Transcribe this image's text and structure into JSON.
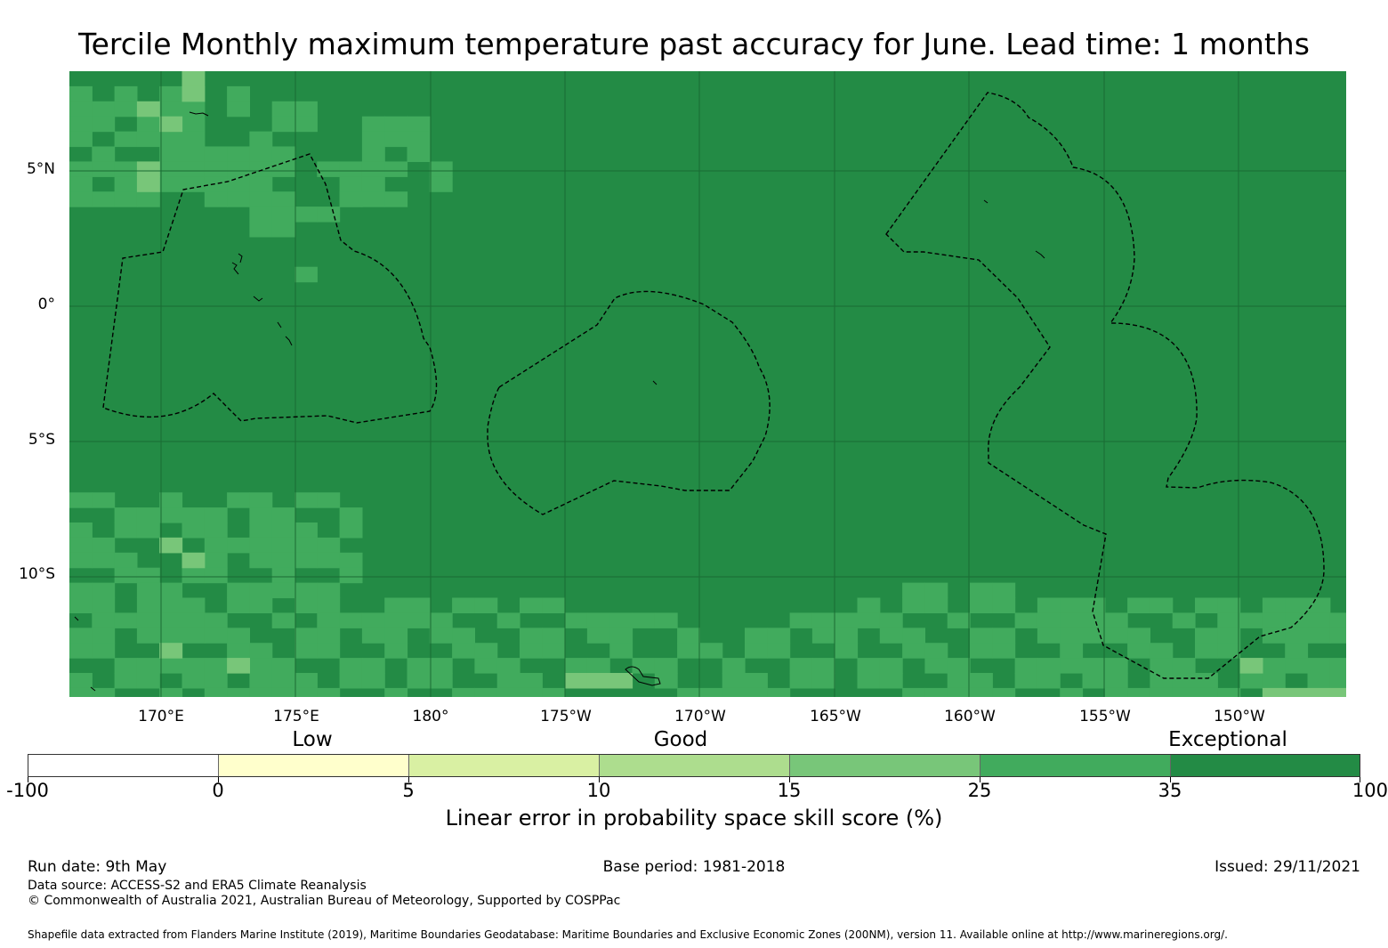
{
  "title": "Tercile Monthly maximum temperature past accuracy for June. Lead time: 1 months",
  "map": {
    "latitude_labels": [
      "5°N",
      "0°",
      "5°S",
      "10°S"
    ],
    "longitude_labels": [
      "170°E",
      "175°E",
      "180°",
      "175°W",
      "170°W",
      "165°W",
      "160°W",
      "155°W",
      "150°W"
    ],
    "base_color": "#238b45",
    "gridline_color": "#1a6b34"
  },
  "categories": [
    "Low",
    "Good",
    "Exceptional"
  ],
  "colorbar": {
    "bins": [
      {
        "from": "-100",
        "to": "0",
        "color": "#ffffff"
      },
      {
        "from": "0",
        "to": "5",
        "color": "#ffffcc"
      },
      {
        "from": "5",
        "to": "10",
        "color": "#d9f0a3"
      },
      {
        "from": "10",
        "to": "15",
        "color": "#addd8e"
      },
      {
        "from": "15",
        "to": "25",
        "color": "#78c679"
      },
      {
        "from": "25",
        "to": "35",
        "color": "#41ab5d"
      },
      {
        "from": "35",
        "to": "100",
        "color": "#238b45"
      }
    ],
    "tick_labels": [
      "-100",
      "0",
      "5",
      "10",
      "15",
      "25",
      "35",
      "100"
    ],
    "label": "Linear error in probability space skill score (%)"
  },
  "footer": {
    "run_date": "Run date: 9th May",
    "base_period": "Base period: 1981-2018",
    "issued": "Issued: 29/11/2021",
    "data_source": "Data source: ACCESS-S2 and ERA5 Climate Reanalysis",
    "copyright": "© Commonwealth of Australia 2021, Australian Bureau of Meteorology, Supported by COSPPac",
    "shapefile": "Shapefile data extracted from Flanders Marine Institute (2019), Maritime Boundaries Geodatabase: Maritime Boundaries and Exclusive Economic Zones (200NM), version 11. Available online at http://www.marineregions.org/."
  }
}
